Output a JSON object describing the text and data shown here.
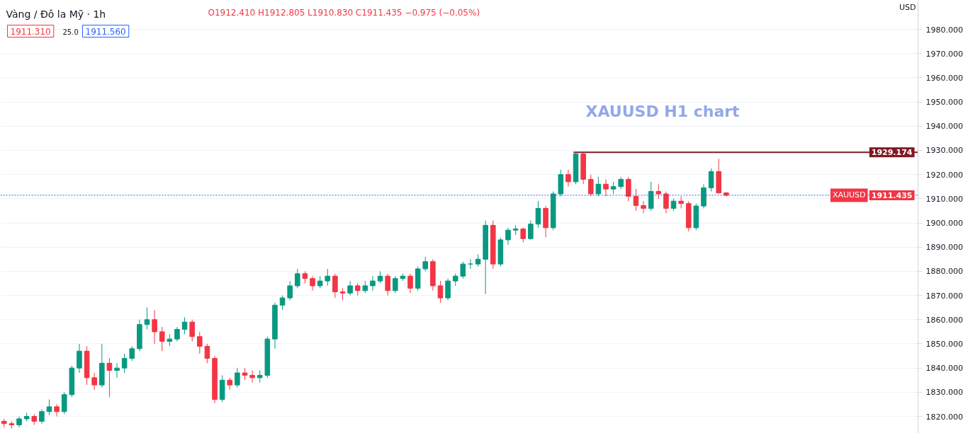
{
  "chart_data": {
    "type": "candlestick",
    "title": "Vàng / Đô la Mỹ · 1h",
    "ylabel": "USD",
    "annotations": [
      "XAUUSD H1 chart",
      "O1912.410 H1912.805 L1910.830 C1911.435 −0.975 (−0.05%)",
      "1911.310",
      "25.0",
      "1911.560",
      "1911.435"
    ],
    "categories": [
      null,
      null,
      null,
      null,
      null,
      null,
      null,
      null,
      null,
      null,
      null,
      null,
      null,
      null,
      null,
      null,
      null,
      null,
      null,
      null,
      null,
      null,
      null,
      null,
      null,
      null,
      null,
      null,
      null,
      null,
      null,
      null,
      null,
      null,
      null,
      null,
      null,
      null,
      null,
      null,
      null,
      null,
      null,
      null,
      null,
      null,
      null,
      null,
      null,
      null,
      null,
      null,
      null,
      null,
      null,
      null,
      null,
      null,
      null,
      null,
      null,
      null,
      null,
      null,
      null,
      null,
      null,
      null,
      null,
      null,
      null,
      null,
      null,
      null,
      null,
      null,
      null,
      null,
      null,
      null,
      null,
      null,
      null,
      null,
      null,
      null,
      null,
      null,
      null,
      null,
      null,
      null,
      null,
      null,
      null,
      null,
      null,
      null,
      null,
      null,
      null,
      null,
      null,
      null,
      null,
      null,
      null,
      null,
      null,
      null,
      null,
      null,
      null,
      null,
      null,
      null,
      null,
      null,
      null,
      null,
      null,
      null
    ],
    "ohlc": [
      [
        1818,
        1819,
        1815.5,
        1817
      ],
      [
        1817,
        1818,
        1815,
        1816.5
      ],
      [
        1816.5,
        1820,
        1815.5,
        1819
      ],
      [
        1819,
        1821.5,
        1818,
        1820
      ],
      [
        1820,
        1821,
        1816.5,
        1818
      ],
      [
        1818,
        1823,
        1817,
        1822
      ],
      [
        1822,
        1827,
        1820.5,
        1824
      ],
      [
        1824,
        1825,
        1820,
        1822
      ],
      [
        1822,
        1830,
        1821,
        1829
      ],
      [
        1829,
        1841,
        1828,
        1840
      ],
      [
        1840,
        1850,
        1838,
        1847
      ],
      [
        1847,
        1849,
        1833,
        1836
      ],
      [
        1836,
        1838,
        1831,
        1833
      ],
      [
        1833,
        1850,
        1832,
        1842
      ],
      [
        1842,
        1844,
        1828,
        1839
      ],
      [
        1839,
        1842,
        1836,
        1840
      ],
      [
        1840,
        1846,
        1838,
        1844
      ],
      [
        1844,
        1849,
        1843,
        1848
      ],
      [
        1848,
        1860,
        1847,
        1858
      ],
      [
        1858,
        1865,
        1856,
        1860
      ],
      [
        1860,
        1864,
        1850,
        1855
      ],
      [
        1855,
        1857,
        1847,
        1851
      ],
      [
        1851,
        1854,
        1849,
        1852
      ],
      [
        1852,
        1857,
        1851,
        1856
      ],
      [
        1856,
        1861,
        1854,
        1859
      ],
      [
        1859,
        1860,
        1851,
        1853
      ],
      [
        1853,
        1855,
        1846,
        1849
      ],
      [
        1849,
        1850,
        1842,
        1844
      ],
      [
        1844,
        1845,
        1825.5,
        1827
      ],
      [
        1827,
        1837,
        1826,
        1835
      ],
      [
        1835,
        1836,
        1831,
        1833
      ],
      [
        1833,
        1840,
        1832,
        1838
      ],
      [
        1838,
        1840,
        1835,
        1837
      ],
      [
        1837,
        1839,
        1834,
        1836
      ],
      [
        1836,
        1839,
        1834,
        1837
      ],
      [
        1837,
        1853,
        1836,
        1852
      ],
      [
        1852,
        1867,
        1848,
        1866
      ],
      [
        1866,
        1870,
        1864,
        1869
      ],
      [
        1869,
        1876,
        1868,
        1874
      ],
      [
        1874,
        1881,
        1873,
        1879
      ],
      [
        1879,
        1880,
        1875,
        1877
      ],
      [
        1877,
        1878,
        1872,
        1874
      ],
      [
        1874,
        1878,
        1873,
        1876
      ],
      [
        1876,
        1881,
        1874,
        1878
      ],
      [
        1878,
        1879,
        1869,
        1871.5
      ],
      [
        1871.5,
        1873,
        1868,
        1871
      ],
      [
        1871,
        1876,
        1870,
        1874
      ],
      [
        1874,
        1875,
        1870,
        1872
      ],
      [
        1872,
        1876,
        1871,
        1874
      ],
      [
        1874,
        1878,
        1872,
        1876
      ],
      [
        1876,
        1880,
        1875,
        1878
      ],
      [
        1878,
        1879,
        1870,
        1872
      ],
      [
        1872,
        1878,
        1871,
        1877
      ],
      [
        1877,
        1879,
        1876,
        1878
      ],
      [
        1878,
        1879,
        1871,
        1873
      ],
      [
        1873,
        1882,
        1872,
        1881
      ],
      [
        1881,
        1886,
        1880,
        1884
      ],
      [
        1884,
        1885,
        1872,
        1874
      ],
      [
        1874,
        1876,
        1867,
        1869
      ],
      [
        1869,
        1877,
        1868,
        1876
      ],
      [
        1876,
        1879,
        1874,
        1878
      ],
      [
        1878,
        1884,
        1877,
        1883
      ],
      [
        1883,
        1885,
        1881,
        1883
      ],
      [
        1883,
        1887,
        1882,
        1885
      ],
      [
        1885,
        1901,
        1870.6,
        1899
      ],
      [
        1899,
        1901,
        1881,
        1883
      ],
      [
        1883,
        1894,
        1882,
        1893
      ],
      [
        1893,
        1898,
        1891,
        1897
      ],
      [
        1897,
        1899,
        1895,
        1897.5
      ],
      [
        1897.5,
        1898,
        1892,
        1893.5
      ],
      [
        1893.5,
        1901,
        1893,
        1899.5
      ],
      [
        1899.5,
        1909,
        1898,
        1906
      ],
      [
        1906,
        1907,
        1894,
        1898
      ],
      [
        1898,
        1913,
        1897,
        1912
      ],
      [
        1912,
        1922,
        1911,
        1920
      ],
      [
        1920,
        1922,
        1915,
        1917
      ],
      [
        1917,
        1929.174,
        1916,
        1928.5
      ],
      [
        1928.5,
        1929,
        1916,
        1918
      ],
      [
        1918,
        1920,
        1911,
        1912
      ],
      [
        1912,
        1919,
        1911,
        1916
      ],
      [
        1916,
        1918,
        1911,
        1914
      ],
      [
        1914,
        1917,
        1912,
        1915
      ],
      [
        1915,
        1919,
        1914,
        1918
      ],
      [
        1918,
        1919,
        1909,
        1911
      ],
      [
        1911,
        1914,
        1905,
        1907.2
      ],
      [
        1907.2,
        1909,
        1904,
        1906
      ],
      [
        1906,
        1917,
        1905,
        1913
      ],
      [
        1913,
        1916,
        1910,
        1912
      ],
      [
        1912,
        1913,
        1904,
        1906
      ],
      [
        1906,
        1910,
        1905,
        1909
      ],
      [
        1909,
        1911,
        1906,
        1908
      ],
      [
        1908,
        1909,
        1896.5,
        1898
      ],
      [
        1898,
        1908,
        1897,
        1907
      ],
      [
        1907,
        1916,
        1906,
        1914.5
      ],
      [
        1914.5,
        1922.5,
        1913,
        1921.2
      ],
      [
        1921.2,
        1926.5,
        1912,
        1912.41
      ],
      [
        1912.41,
        1912.805,
        1910.83,
        1911.435
      ],
      null,
      null,
      null,
      null,
      null,
      null,
      null,
      null,
      null,
      null,
      null,
      null,
      null,
      null,
      null,
      null,
      null,
      null,
      null,
      null,
      null,
      null,
      null,
      null,
      null
    ],
    "colors": [
      "#f23645",
      "#f23645",
      "#089981",
      "#089981",
      "#f23645",
      "#089981",
      "#089981",
      "#f23645",
      "#089981",
      "#089981",
      "#089981",
      "#f23645",
      "#f23645",
      "#089981",
      "#f23645",
      "#089981",
      "#089981",
      "#089981",
      "#089981",
      "#089981",
      "#f23645",
      "#f23645",
      "#089981",
      "#089981",
      "#089981",
      "#f23645",
      "#f23645",
      "#f23645",
      "#f23645",
      "#089981",
      "#f23645",
      "#089981",
      "#f23645",
      "#f23645",
      "#089981",
      "#089981",
      "#089981",
      "#089981",
      "#089981",
      "#089981",
      "#f23645",
      "#f23645",
      "#089981",
      "#089981",
      "#f23645",
      "#f23645",
      "#089981",
      "#f23645",
      "#089981",
      "#089981",
      "#089981",
      "#f23645",
      "#089981",
      "#089981",
      "#f23645",
      "#089981",
      "#089981",
      "#f23645",
      "#f23645",
      "#089981",
      "#089981",
      "#089981",
      "#089981",
      "#089981",
      "#089981",
      "#f23645",
      "#089981",
      "#089981",
      "#089981",
      "#f23645",
      "#089981",
      "#089981",
      "#f23645",
      "#089981",
      "#089981",
      "#f23645",
      "#089981",
      "#f23645",
      "#f23645",
      "#089981",
      "#f23645",
      "#089981",
      "#089981",
      "#f23645",
      "#f23645",
      "#f23645",
      "#089981",
      "#f23645",
      "#f23645",
      "#089981",
      "#f23645",
      "#f23645",
      "#089981",
      "#089981",
      "#089981",
      "#f23645",
      "#f23645",
      null,
      null,
      null,
      null,
      null,
      null,
      null,
      null,
      null,
      null,
      null,
      null,
      null,
      null,
      null,
      null,
      null,
      null,
      null,
      null,
      null,
      null,
      null,
      null,
      null
    ],
    "ylim": [
      1813,
      1992
    ],
    "yticks": [
      {
        "value": 1820,
        "label": "1820.000"
      },
      {
        "value": 1830,
        "label": "1830.000"
      },
      {
        "value": 1840,
        "label": "1840.000"
      },
      {
        "value": 1850,
        "label": "1850.000"
      },
      {
        "value": 1860,
        "label": "1860.000"
      },
      {
        "value": 1870,
        "label": "1870.000"
      },
      {
        "value": 1880,
        "label": "1880.000"
      },
      {
        "value": 1890,
        "label": "1890.000"
      },
      {
        "value": 1900,
        "label": "1900.000"
      },
      {
        "value": 1910,
        "label": "1910.000"
      },
      {
        "value": 1920,
        "label": "1920.000"
      },
      {
        "value": 1930,
        "label": "1930.000"
      },
      {
        "value": 1940,
        "label": "1940.000"
      },
      {
        "value": 1950,
        "label": "1950.000"
      },
      {
        "value": 1960,
        "label": "1960.000"
      },
      {
        "value": 1970,
        "label": "1970.000"
      },
      {
        "value": 1980,
        "label": "1980.000"
      }
    ],
    "ref_lines": [
      {
        "axis": "y",
        "value": 1929.174,
        "label": "1929.174",
        "color": "#801922",
        "line_style": "solid"
      },
      {
        "axis": "y",
        "value": 1911.435,
        "label": "XAUUSD",
        "color": "#2962ff",
        "line_style": "dotted"
      }
    ],
    "tick_labels": "y",
    "grid": "y"
  }
}
